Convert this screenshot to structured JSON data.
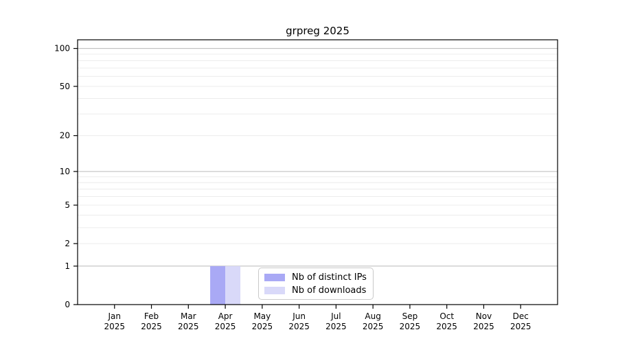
{
  "title": "grpreg 2025",
  "chart_data": {
    "type": "bar",
    "title": "grpreg 2025",
    "categories": [
      "Jan",
      "Feb",
      "Mar",
      "Apr",
      "May",
      "Jun",
      "Jul",
      "Aug",
      "Sep",
      "Oct",
      "Nov",
      "Dec"
    ],
    "year_label": "2025",
    "series": [
      {
        "name": "Nb of distinct IPs",
        "color": "#a9a9f5",
        "values": [
          0,
          0,
          0,
          1,
          0,
          0,
          0,
          0,
          0,
          0,
          0,
          0
        ]
      },
      {
        "name": "Nb of downloads",
        "color": "#d9d9f9",
        "values": [
          0,
          0,
          0,
          1,
          0,
          0,
          0,
          0,
          0,
          0,
          0,
          0
        ]
      }
    ],
    "xlabel": "",
    "ylabel": "",
    "y_scale": "log1p",
    "ylim": [
      0,
      117
    ],
    "y_ticks": [
      0,
      1,
      2,
      5,
      10,
      20,
      50,
      100
    ],
    "grid_major_values": [
      1,
      10,
      100
    ],
    "grid_minor_values": [
      2,
      3,
      4,
      5,
      6,
      7,
      8,
      9,
      20,
      30,
      40,
      50,
      60,
      70,
      80,
      90
    ],
    "grid_major_color": "#b8b8b8",
    "grid_minor_color": "#ececec",
    "axis_color": "#000000",
    "legend_position": "lower center",
    "grid": "on"
  }
}
